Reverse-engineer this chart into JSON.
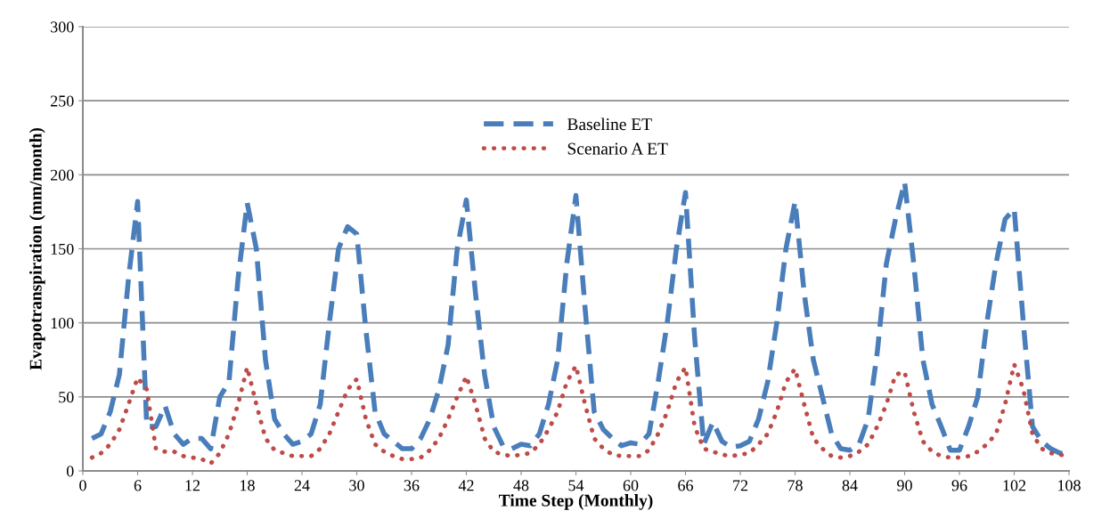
{
  "chart_data": {
    "type": "line",
    "xlabel": "Time Step (Monthly)",
    "ylabel": "Evapotranspiration (mm/month)",
    "x": [
      1,
      2,
      3,
      4,
      5,
      6,
      7,
      8,
      9,
      10,
      11,
      12,
      13,
      14,
      15,
      16,
      17,
      18,
      19,
      20,
      21,
      22,
      23,
      24,
      25,
      26,
      27,
      28,
      29,
      30,
      31,
      32,
      33,
      34,
      35,
      36,
      37,
      38,
      39,
      40,
      41,
      42,
      43,
      44,
      45,
      46,
      47,
      48,
      49,
      50,
      51,
      52,
      53,
      54,
      55,
      56,
      57,
      58,
      59,
      60,
      61,
      62,
      63,
      64,
      65,
      66,
      67,
      68,
      69,
      70,
      71,
      72,
      73,
      74,
      75,
      76,
      77,
      78,
      79,
      80,
      81,
      82,
      83,
      84,
      85,
      86,
      87,
      88,
      89,
      90,
      91,
      92,
      93,
      94,
      95,
      96,
      97,
      98,
      99,
      100,
      101,
      102,
      103,
      104,
      105,
      106,
      107,
      108
    ],
    "series": [
      {
        "name": "Baseline ET",
        "color": "#4a7ebb",
        "line_style": "dashed",
        "values": [
          22,
          25,
          40,
          65,
          130,
          182,
          30,
          30,
          44,
          25,
          18,
          22,
          22,
          15,
          50,
          60,
          130,
          181,
          150,
          75,
          35,
          25,
          18,
          20,
          25,
          45,
          100,
          150,
          165,
          160,
          95,
          40,
          25,
          20,
          15,
          15,
          22,
          35,
          55,
          85,
          150,
          183,
          120,
          65,
          30,
          17,
          15,
          18,
          17,
          25,
          45,
          75,
          140,
          186,
          110,
          40,
          28,
          22,
          17,
          19,
          18,
          25,
          60,
          100,
          150,
          188,
          90,
          18,
          33,
          20,
          16,
          17,
          20,
          35,
          60,
          100,
          150,
          182,
          120,
          75,
          50,
          25,
          15,
          14,
          18,
          35,
          80,
          140,
          170,
          195,
          140,
          75,
          45,
          30,
          14,
          14,
          30,
          50,
          100,
          140,
          170,
          177,
          100,
          30,
          20,
          15,
          12,
          11
        ]
      },
      {
        "name": "Scenario A ET",
        "color": "#be4b48",
        "line_style": "dotted",
        "values": [
          9,
          12,
          18,
          28,
          45,
          63,
          55,
          15,
          13,
          13,
          10,
          9,
          8,
          5,
          12,
          25,
          45,
          70,
          45,
          22,
          14,
          12,
          10,
          10,
          10,
          15,
          25,
          40,
          55,
          62,
          35,
          18,
          13,
          10,
          8,
          8,
          9,
          14,
          22,
          35,
          50,
          64,
          45,
          22,
          13,
          11,
          10,
          11,
          12,
          18,
          28,
          40,
          60,
          71,
          45,
          22,
          15,
          11,
          10,
          10,
          10,
          14,
          25,
          40,
          60,
          70,
          30,
          15,
          13,
          11,
          10,
          11,
          12,
          18,
          25,
          40,
          60,
          69,
          45,
          22,
          15,
          10,
          9,
          10,
          13,
          18,
          30,
          45,
          65,
          67,
          40,
          20,
          13,
          10,
          9,
          9,
          10,
          13,
          18,
          25,
          45,
          72,
          55,
          25,
          15,
          12,
          11,
          10
        ]
      }
    ],
    "xlim": [
      0,
      108
    ],
    "xticks": [
      0,
      6,
      12,
      18,
      24,
      30,
      36,
      42,
      48,
      54,
      60,
      66,
      72,
      78,
      84,
      90,
      96,
      102,
      108
    ],
    "ylim": [
      0,
      300
    ],
    "yticks": [
      0,
      50,
      100,
      150,
      200,
      250,
      300
    ],
    "grid": "y",
    "legend": "top"
  }
}
